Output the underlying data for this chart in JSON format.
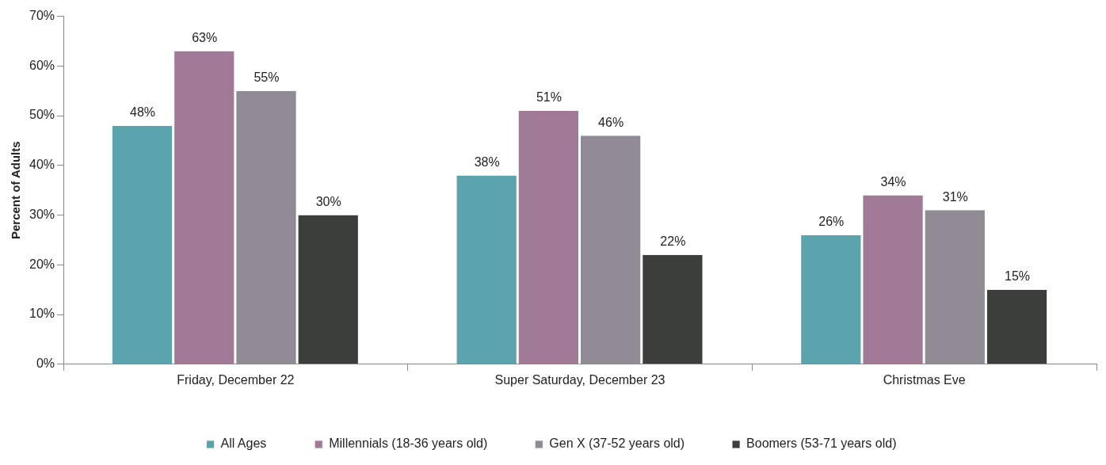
{
  "chart_data": {
    "type": "bar",
    "ylabel": "Percent of Adults",
    "categories": [
      "Friday, December 22",
      "Super Saturday, December 23",
      "Christmas Eve"
    ],
    "series": [
      {
        "name": "All Ages",
        "color": "#5ba3ad",
        "values": [
          48,
          38,
          26
        ],
        "value_labels": [
          "48%",
          "38%",
          "26%"
        ]
      },
      {
        "name": "Millennials (18-36 years old)",
        "color": "#a07a96",
        "values": [
          63,
          51,
          34
        ],
        "value_labels": [
          "63%",
          "51%",
          "34%"
        ]
      },
      {
        "name": "Gen X (37-52 years old)",
        "color": "#8f8a94",
        "values": [
          55,
          46,
          31
        ],
        "value_labels": [
          "55%",
          "46%",
          "31%"
        ]
      },
      {
        "name": "Boomers (53-71 years old)",
        "color": "#3c3e3c",
        "values": [
          30,
          22,
          15
        ],
        "value_labels": [
          "30%",
          "22%",
          "15%"
        ]
      }
    ],
    "ylim": [
      0,
      70
    ],
    "yticks": [
      {
        "value": 0,
        "label": "0%"
      },
      {
        "value": 10,
        "label": "10%"
      },
      {
        "value": 20,
        "label": "20%"
      },
      {
        "value": 30,
        "label": "30%"
      },
      {
        "value": 40,
        "label": "40%"
      },
      {
        "value": 50,
        "label": "50%"
      },
      {
        "value": 60,
        "label": "60%"
      },
      {
        "value": 70,
        "label": "70%"
      }
    ],
    "grid": false,
    "legend": "bottom"
  }
}
